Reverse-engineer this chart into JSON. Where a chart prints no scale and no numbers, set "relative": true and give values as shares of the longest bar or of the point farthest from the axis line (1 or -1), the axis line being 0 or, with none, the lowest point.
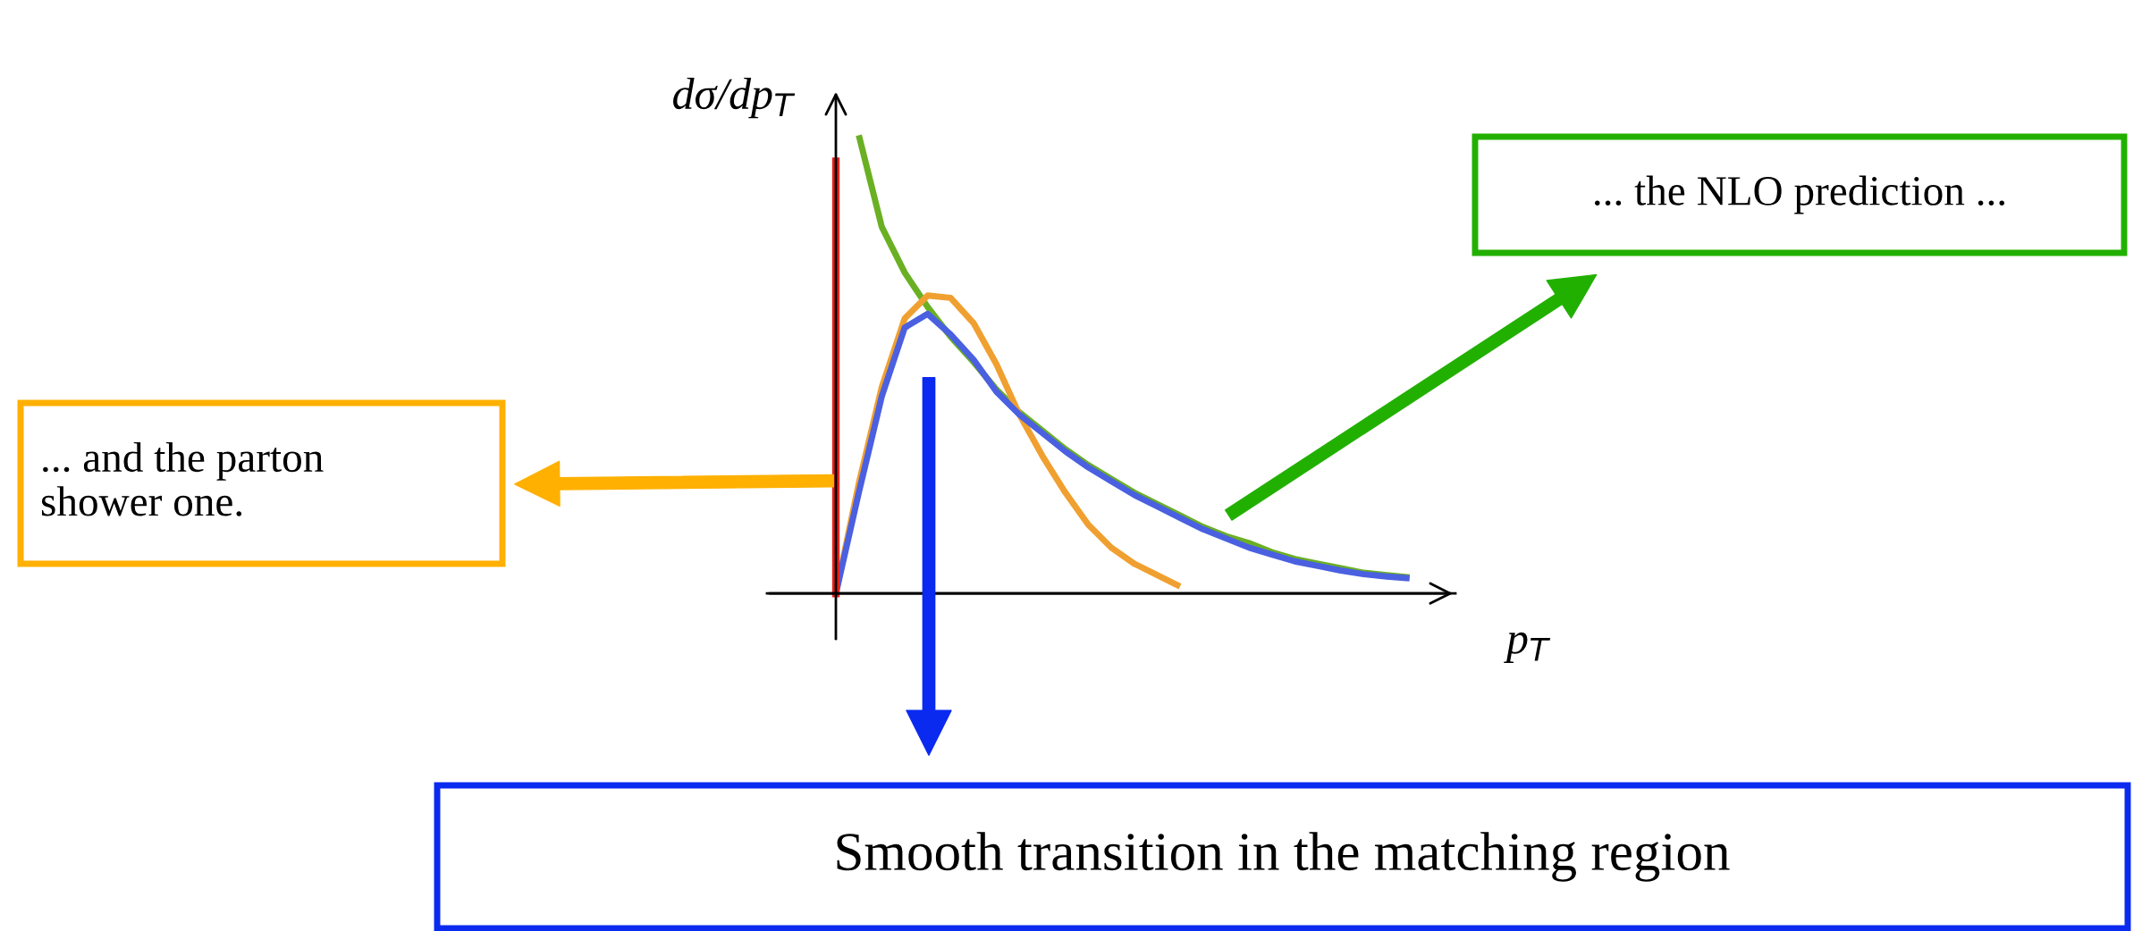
{
  "chart_data": {
    "type": "line",
    "relative": true,
    "xlabel": "p$_{T}$",
    "ylabel": "dσ/dp$_{T}$",
    "categories": [
      null,
      null,
      null,
      null,
      null,
      null,
      null,
      null,
      null,
      null,
      null,
      null,
      null,
      null,
      null,
      null,
      null,
      null,
      null,
      null,
      null,
      null,
      null,
      null,
      null,
      null
    ],
    "series": [
      {
        "color": "#6ab023",
        "values": [
          null,
          1.0,
          0.8,
          0.7,
          0.625,
          0.56,
          0.505,
          0.445,
          0.395,
          0.355,
          0.315,
          0.28,
          0.25,
          0.22,
          0.195,
          0.17,
          0.145,
          0.125,
          0.11,
          0.09,
          0.075,
          0.065,
          0.055,
          0.045,
          0.04,
          0.035
        ]
      },
      {
        "color": "#f0a030",
        "values": [
          0,
          0.24,
          0.45,
          0.6,
          0.65,
          0.645,
          0.59,
          0.5,
          0.39,
          0.3,
          0.22,
          0.15,
          0.1,
          0.065,
          0.04,
          0.015,
          null,
          null,
          null,
          null,
          null,
          null,
          null,
          null,
          null,
          null
        ]
      },
      {
        "color": "#4a60e0",
        "values": [
          0,
          0.22,
          0.43,
          0.58,
          0.61,
          0.565,
          0.51,
          0.44,
          0.39,
          0.35,
          0.31,
          0.275,
          0.245,
          0.215,
          0.19,
          0.165,
          0.14,
          0.12,
          0.1,
          0.085,
          0.07,
          0.06,
          0.05,
          0.042,
          0.037,
          0.033
        ]
      }
    ],
    "annotations": [
      "... the NLO prediction ...",
      "... and the parton\nshower one.",
      "Smooth transition in the matching region"
    ]
  }
}
